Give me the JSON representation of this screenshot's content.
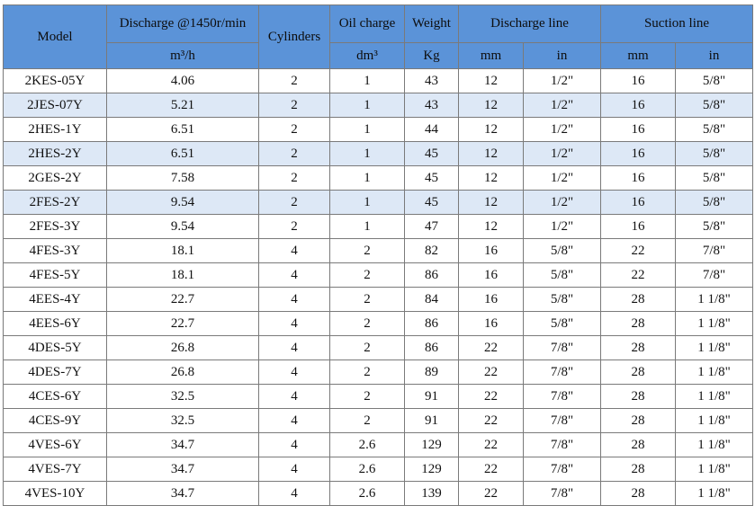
{
  "table": {
    "header": {
      "model": "Model",
      "discharge": "Discharge @1450r/min",
      "discharge_unit": "m³/h",
      "cylinders": "Cylinders",
      "oil": "Oil charge",
      "oil_unit": "dm³",
      "weight": "Weight",
      "weight_unit": "Kg",
      "discharge_line": "Discharge line",
      "suction_line": "Suction line",
      "dl_mm": "mm",
      "dl_in": "in",
      "sl_mm": "mm",
      "sl_in": "in"
    },
    "rows": [
      [
        "2KES-05Y",
        "4.06",
        "2",
        "1",
        "43",
        "12",
        "1/2\"",
        "16",
        "5/8\""
      ],
      [
        "2JES-07Y",
        "5.21",
        "2",
        "1",
        "43",
        "12",
        "1/2\"",
        "16",
        "5/8\""
      ],
      [
        "2HES-1Y",
        "6.51",
        "2",
        "1",
        "44",
        "12",
        "1/2\"",
        "16",
        "5/8\""
      ],
      [
        "2HES-2Y",
        "6.51",
        "2",
        "1",
        "45",
        "12",
        "1/2\"",
        "16",
        "5/8\""
      ],
      [
        "2GES-2Y",
        "7.58",
        "2",
        "1",
        "45",
        "12",
        "1/2\"",
        "16",
        "5/8\""
      ],
      [
        "2FES-2Y",
        "9.54",
        "2",
        "1",
        "45",
        "12",
        "1/2\"",
        "16",
        "5/8\""
      ],
      [
        "2FES-3Y",
        "9.54",
        "2",
        "1",
        "47",
        "12",
        "1/2\"",
        "16",
        "5/8\""
      ],
      [
        "4FES-3Y",
        "18.1",
        "4",
        "2",
        "82",
        "16",
        "5/8\"",
        "22",
        "7/8\""
      ],
      [
        "4FES-5Y",
        "18.1",
        "4",
        "2",
        "86",
        "16",
        "5/8\"",
        "22",
        "7/8\""
      ],
      [
        "4EES-4Y",
        "22.7",
        "4",
        "2",
        "84",
        "16",
        "5/8\"",
        "28",
        "1 1/8\""
      ],
      [
        "4EES-6Y",
        "22.7",
        "4",
        "2",
        "86",
        "16",
        "5/8\"",
        "28",
        "1 1/8\""
      ],
      [
        "4DES-5Y",
        "26.8",
        "4",
        "2",
        "86",
        "22",
        "7/8\"",
        "28",
        "1 1/8\""
      ],
      [
        "4DES-7Y",
        "26.8",
        "4",
        "2",
        "89",
        "22",
        "7/8\"",
        "28",
        "1 1/8\""
      ],
      [
        "4CES-6Y",
        "32.5",
        "4",
        "2",
        "91",
        "22",
        "7/8\"",
        "28",
        "1 1/8\""
      ],
      [
        "4CES-9Y",
        "32.5",
        "4",
        "2",
        "91",
        "22",
        "7/8\"",
        "28",
        "1 1/8\""
      ],
      [
        "4VES-6Y",
        "34.7",
        "4",
        "2.6",
        "129",
        "22",
        "7/8\"",
        "28",
        "1 1/8\""
      ],
      [
        "4VES-7Y",
        "34.7",
        "4",
        "2.6",
        "129",
        "22",
        "7/8\"",
        "28",
        "1 1/8\""
      ],
      [
        "4VES-10Y",
        "34.7",
        "4",
        "2.6",
        "139",
        "22",
        "7/8\"",
        "28",
        "1 1/8\""
      ]
    ]
  }
}
